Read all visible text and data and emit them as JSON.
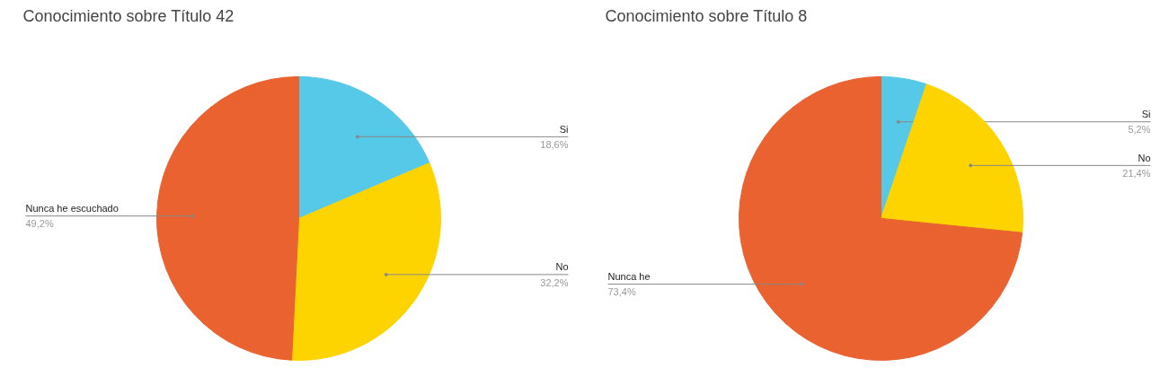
{
  "chart_data": [
    {
      "type": "pie",
      "title": "Conocimiento sobre Título 42",
      "categories": [
        "Si",
        "No",
        "Nunca he escuchado"
      ],
      "values": [
        18.6,
        32.2,
        49.2
      ],
      "colors": [
        "#56c8e8",
        "#fed400",
        "#ea6230"
      ],
      "value_labels": [
        "18,6%",
        "32,2%",
        "49,2%"
      ]
    },
    {
      "type": "pie",
      "title": "Conocimiento sobre Título 8",
      "categories": [
        "Si",
        "No",
        "Nunca he"
      ],
      "values": [
        5.2,
        21.4,
        73.4
      ],
      "colors": [
        "#56c8e8",
        "#fed400",
        "#ea6230"
      ],
      "value_labels": [
        "5,2%",
        "21,4%",
        "73,4%"
      ]
    }
  ]
}
